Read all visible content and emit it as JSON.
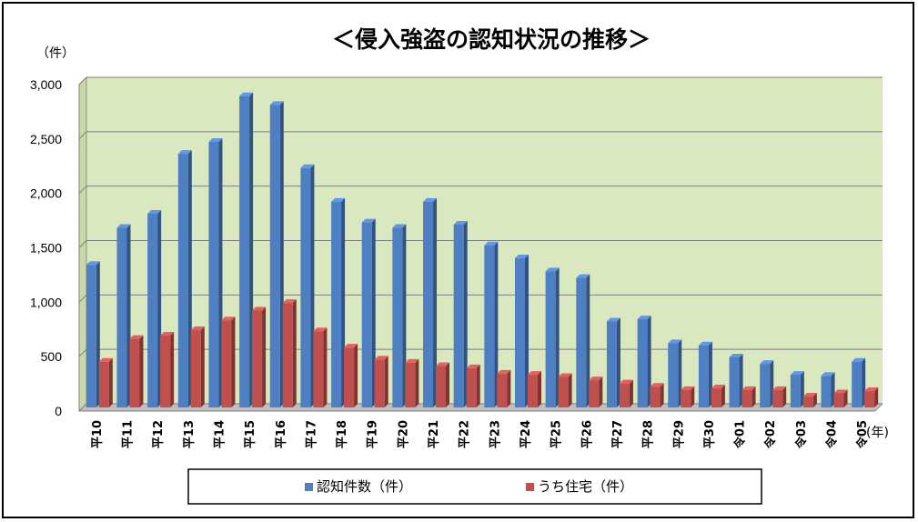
{
  "chart_data": {
    "type": "bar",
    "title": "＜侵入強盗の認知状況の推移＞",
    "ylabel": "（件）",
    "xlabel": "(年)",
    "ylim": [
      0,
      3000
    ],
    "yticks": [
      "0",
      "500",
      "1,000",
      "1,500",
      "2,000",
      "2,500",
      "3,000"
    ],
    "grid": true,
    "legend_position": "bottom",
    "colors": {
      "plot_background": "#d9e8bf",
      "series_1": "#4f7fc3",
      "series_2": "#c0504d"
    },
    "categories": [
      "平10",
      "平11",
      "平12",
      "平13",
      "平14",
      "平15",
      "平16",
      "平17",
      "平18",
      "平19",
      "平20",
      "平21",
      "平22",
      "平23",
      "平24",
      "平25",
      "平26",
      "平27",
      "平28",
      "平29",
      "平30",
      "令01",
      "令02",
      "令03",
      "令04",
      "令05"
    ],
    "series": [
      {
        "name": "認知件数（件）",
        "values": [
          1310,
          1650,
          1780,
          2330,
          2440,
          2860,
          2780,
          2200,
          1890,
          1700,
          1650,
          1890,
          1680,
          1490,
          1370,
          1250,
          1190,
          790,
          810,
          590,
          570,
          460,
          400,
          300,
          290,
          420
        ]
      },
      {
        "name": "うち住宅（件）",
        "values": [
          420,
          630,
          660,
          710,
          800,
          890,
          960,
          700,
          550,
          440,
          410,
          380,
          360,
          310,
          300,
          280,
          250,
          220,
          190,
          160,
          175,
          160,
          160,
          100,
          130,
          150
        ]
      }
    ]
  }
}
